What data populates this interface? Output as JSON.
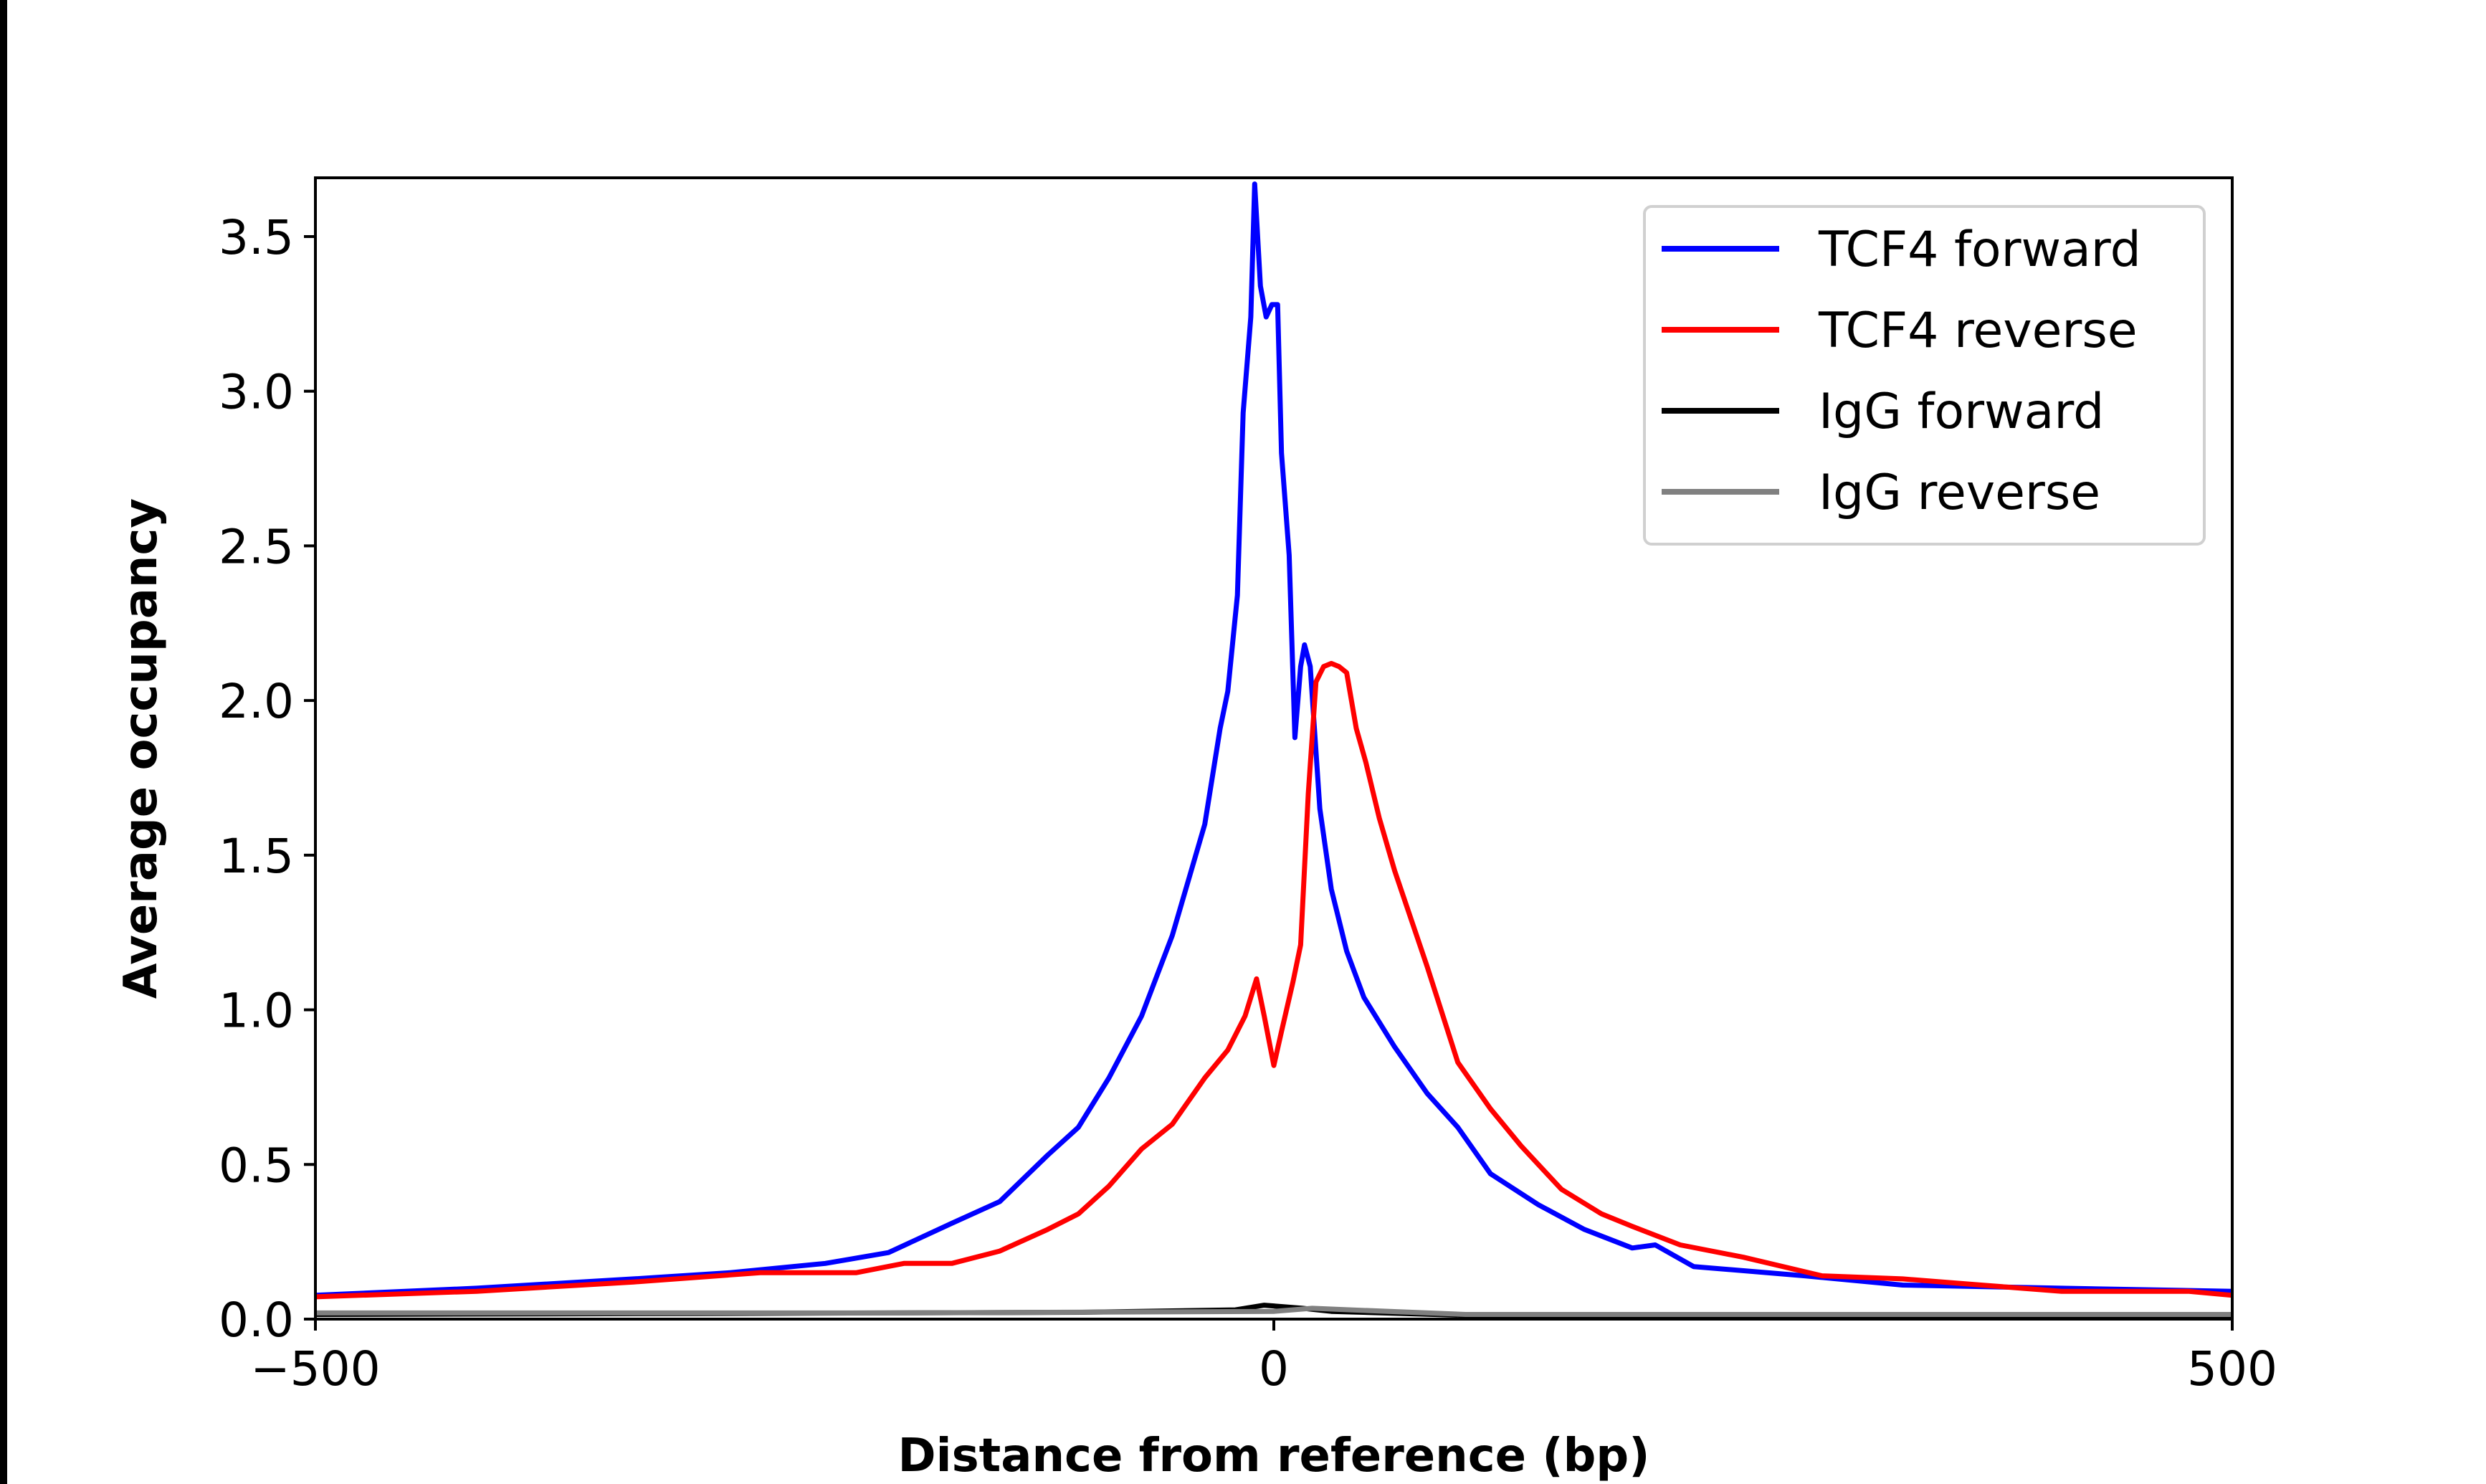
{
  "chart_data": {
    "type": "line",
    "title": "",
    "xlabel": "Distance from reference (bp)",
    "ylabel": "Average occupancy",
    "xlim": [
      -500,
      500
    ],
    "ylim": [
      0,
      3.69
    ],
    "xticks": [
      -500,
      0,
      500
    ],
    "xtick_labels": [
      "−500",
      "0",
      "500"
    ],
    "yticks": [
      0.0,
      0.5,
      1.0,
      1.5,
      2.0,
      2.5,
      3.0,
      3.5
    ],
    "ytick_labels": [
      "0.0",
      "0.5",
      "1.0",
      "1.5",
      "2.0",
      "2.5",
      "3.0",
      "3.5"
    ],
    "grid": false,
    "legend_position": "top-right",
    "series": [
      {
        "name": "TCF4 forward",
        "color": "#0000ff",
        "points": [
          [
            -500,
            0.077
          ],
          [
            -416,
            0.1
          ],
          [
            -334,
            0.13
          ],
          [
            -284,
            0.15
          ],
          [
            -234,
            0.18
          ],
          [
            -201,
            0.215
          ],
          [
            -168,
            0.31
          ],
          [
            -143,
            0.38
          ],
          [
            -118,
            0.53
          ],
          [
            -102,
            0.62
          ],
          [
            -86,
            0.78
          ],
          [
            -69,
            0.98
          ],
          [
            -53,
            1.24
          ],
          [
            -36,
            1.6
          ],
          [
            -28,
            1.91
          ],
          [
            -24,
            2.03
          ],
          [
            -19,
            2.34
          ],
          [
            -16,
            2.93
          ],
          [
            -12,
            3.24
          ],
          [
            -10,
            3.67
          ],
          [
            -7,
            3.34
          ],
          [
            -4,
            3.24
          ],
          [
            -1,
            3.28
          ],
          [
            2,
            3.28
          ],
          [
            4,
            2.8
          ],
          [
            8,
            2.47
          ],
          [
            11,
            1.88
          ],
          [
            14,
            2.11
          ],
          [
            16,
            2.18
          ],
          [
            19,
            2.11
          ],
          [
            24,
            1.65
          ],
          [
            30,
            1.39
          ],
          [
            38,
            1.19
          ],
          [
            47,
            1.04
          ],
          [
            63,
            0.88
          ],
          [
            80,
            0.73
          ],
          [
            96,
            0.62
          ],
          [
            113,
            0.47
          ],
          [
            138,
            0.37
          ],
          [
            162,
            0.29
          ],
          [
            187,
            0.23
          ],
          [
            199,
            0.24
          ],
          [
            219,
            0.17
          ],
          [
            277,
            0.14
          ],
          [
            328,
            0.11
          ],
          [
            411,
            0.1
          ],
          [
            500,
            0.09
          ]
        ]
      },
      {
        "name": "TCF4 reverse",
        "color": "#ff0000",
        "points": [
          [
            -500,
            0.072
          ],
          [
            -416,
            0.09
          ],
          [
            -334,
            0.12
          ],
          [
            -268,
            0.15
          ],
          [
            -218,
            0.15
          ],
          [
            -193,
            0.18
          ],
          [
            -168,
            0.18
          ],
          [
            -143,
            0.22
          ],
          [
            -118,
            0.29
          ],
          [
            -102,
            0.34
          ],
          [
            -86,
            0.43
          ],
          [
            -69,
            0.55
          ],
          [
            -53,
            0.63
          ],
          [
            -36,
            0.78
          ],
          [
            -24,
            0.87
          ],
          [
            -15,
            0.98
          ],
          [
            -9,
            1.1
          ],
          [
            -5,
            0.98
          ],
          [
            0,
            0.82
          ],
          [
            4,
            0.93
          ],
          [
            10,
            1.09
          ],
          [
            14,
            1.21
          ],
          [
            18,
            1.7
          ],
          [
            22,
            2.06
          ],
          [
            26,
            2.11
          ],
          [
            30,
            2.12
          ],
          [
            34,
            2.11
          ],
          [
            38,
            2.09
          ],
          [
            43,
            1.91
          ],
          [
            48,
            1.8
          ],
          [
            55,
            1.62
          ],
          [
            63,
            1.45
          ],
          [
            80,
            1.14
          ],
          [
            96,
            0.83
          ],
          [
            113,
            0.68
          ],
          [
            129,
            0.56
          ],
          [
            150,
            0.42
          ],
          [
            171,
            0.34
          ],
          [
            187,
            0.3
          ],
          [
            212,
            0.24
          ],
          [
            245,
            0.2
          ],
          [
            286,
            0.14
          ],
          [
            328,
            0.13
          ],
          [
            369,
            0.11
          ],
          [
            411,
            0.09
          ],
          [
            477,
            0.09
          ],
          [
            500,
            0.077
          ]
        ]
      },
      {
        "name": "IgG forward",
        "color": "#000000",
        "points": [
          [
            -500,
            0.015
          ],
          [
            -300,
            0.018
          ],
          [
            -100,
            0.022
          ],
          [
            -20,
            0.03
          ],
          [
            -5,
            0.045
          ],
          [
            5,
            0.04
          ],
          [
            15,
            0.035
          ],
          [
            30,
            0.025
          ],
          [
            100,
            0.012
          ],
          [
            500,
            0.01
          ]
        ]
      },
      {
        "name": "IgG reverse",
        "color": "#808080",
        "points": [
          [
            -500,
            0.02
          ],
          [
            -200,
            0.02
          ],
          [
            0,
            0.025
          ],
          [
            20,
            0.035
          ],
          [
            40,
            0.03
          ],
          [
            100,
            0.015
          ],
          [
            500,
            0.015
          ]
        ]
      }
    ]
  }
}
